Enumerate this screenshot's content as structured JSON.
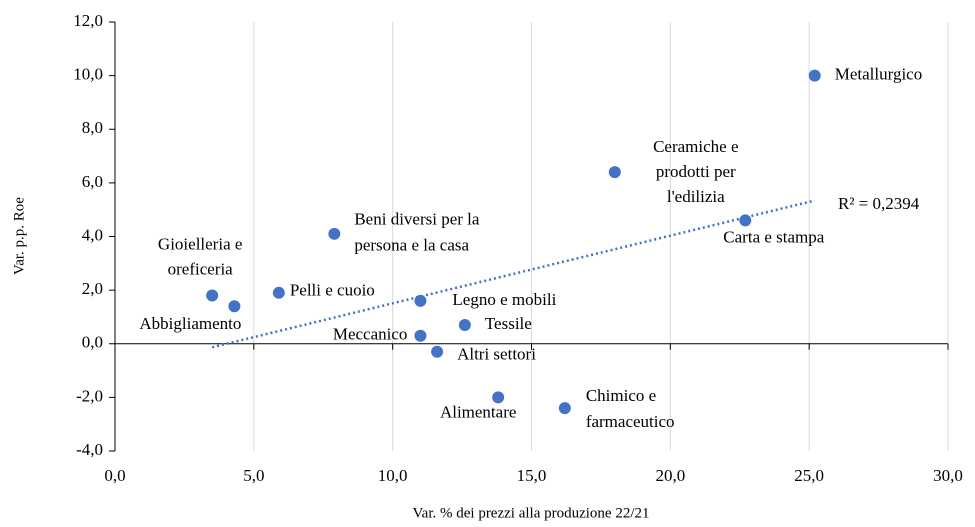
{
  "chart_data": {
    "type": "scatter",
    "xlabel": "Var. % dei prezzi alla produzione 22/21",
    "ylabel": "Var. p.p. Roe",
    "annotation": "R² = 0,2394",
    "color": "#4472c4",
    "trendline": true,
    "grid": true,
    "xlim": [
      0,
      30
    ],
    "ylim": [
      -4,
      12
    ],
    "xticks": [
      {
        "value": 0,
        "label": "0,0"
      },
      {
        "value": 5,
        "label": "5,0"
      },
      {
        "value": 10,
        "label": "10,0"
      },
      {
        "value": 15,
        "label": "15,0"
      },
      {
        "value": 20,
        "label": "20,0"
      },
      {
        "value": 25,
        "label": "25,0"
      },
      {
        "value": 30,
        "label": "30,0"
      }
    ],
    "yticks": [
      {
        "value": -4,
        "label": "-4,0"
      },
      {
        "value": -2,
        "label": "-2,0"
      },
      {
        "value": 0,
        "label": "0,0"
      },
      {
        "value": 2,
        "label": "2,0"
      },
      {
        "value": 4,
        "label": "4,0"
      },
      {
        "value": 6,
        "label": "6,0"
      },
      {
        "value": 8,
        "label": "8,0"
      },
      {
        "value": 10,
        "label": "10,0"
      },
      {
        "value": 12,
        "label": "12,0"
      }
    ],
    "x": [
      25.2,
      18.0,
      22.7,
      7.9,
      3.5,
      4.3,
      5.9,
      11.0,
      12.6,
      11.0,
      11.6,
      13.8,
      16.2
    ],
    "values": [
      10.0,
      6.4,
      4.6,
      4.1,
      1.8,
      1.4,
      1.9,
      1.6,
      0.7,
      0.3,
      -0.3,
      -2.0,
      -2.4
    ],
    "labels": [
      [
        "Metallurgico"
      ],
      [
        "Ceramiche e",
        "prodotti per",
        "l'edilizia"
      ],
      [
        "Carta e stampa"
      ],
      [
        "Beni diversi per la",
        "persona e la casa"
      ],
      [
        "Gioielleria e",
        "oreficeria"
      ],
      [
        "Abbigliamento"
      ],
      [
        "Pelli e cuoio"
      ],
      [
        "Legno e mobili"
      ],
      [
        "Tessile"
      ],
      [
        "Meccanico"
      ],
      [
        "Altri settori"
      ],
      [
        "Alimentare"
      ],
      [
        "Chimico e",
        "farmaceutico"
      ]
    ]
  }
}
